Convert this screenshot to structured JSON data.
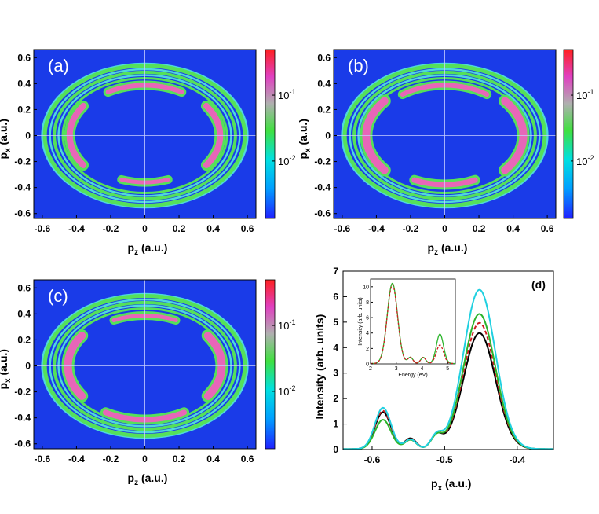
{
  "colors": {
    "map_background": "#1a3be8",
    "ring_green": "#55e05a",
    "ring_cyan": "#4fd8dc",
    "ring_magenta": "#e866b8",
    "crosshair": "#c8d0ff",
    "colorbar": [
      "#2020ff",
      "#00a0ff",
      "#00e0e0",
      "#40e040",
      "#b0b0b0",
      "#e040c0",
      "#ff2020"
    ]
  },
  "chart_data": [
    {
      "panel": "a",
      "type": "heatmap",
      "label": "(a)",
      "xlabel_main": "p",
      "xlabel_sub": "z",
      "xlabel_tail": " (a.u.)",
      "ylabel_main": "p",
      "ylabel_sub": "x",
      "ylabel_tail": " (a.u.)",
      "xlim": [
        -0.65,
        0.65
      ],
      "ylim": [
        -0.65,
        0.65
      ],
      "xticks": [
        "-0.6",
        "-0.4",
        "-0.2",
        "0",
        "0.2",
        "0.4",
        "0.6"
      ],
      "yticks": [
        "0.6",
        "0.4",
        "0.2",
        "0",
        "-0.2",
        "-0.4",
        "-0.6"
      ],
      "colorbar_ticks": [
        {
          "base": "10",
          "exp": "-1"
        },
        {
          "base": "10",
          "exp": "-2"
        }
      ],
      "scale": "log",
      "arcs": [
        {
          "r": 0.44,
          "from": -62,
          "to": -28,
          "level": 2
        },
        {
          "r": 0.44,
          "from": 28,
          "to": 62,
          "level": 2
        },
        {
          "r": 0.44,
          "from": 118,
          "to": 152,
          "level": 2
        },
        {
          "r": 0.44,
          "from": 208,
          "to": 242,
          "level": 2
        }
      ]
    },
    {
      "panel": "b",
      "type": "heatmap",
      "label": "(b)",
      "xlabel_main": "p",
      "xlabel_sub": "z",
      "xlabel_tail": " (a.u.)",
      "ylabel_main": "p",
      "ylabel_sub": "x",
      "ylabel_tail": " (a.u.)",
      "xlim": [
        -0.65,
        0.65
      ],
      "ylim": [
        -0.65,
        0.65
      ],
      "xticks": [
        "-0.6",
        "-0.4",
        "-0.2",
        "0",
        "0.2",
        "0.4",
        "0.6"
      ],
      "yticks": [
        "0.6",
        "0.4",
        "0.2",
        "0",
        "-0.2",
        "-0.4",
        "-0.6"
      ],
      "colorbar_ticks": [
        {
          "base": "10",
          "exp": "-1"
        },
        {
          "base": "10",
          "exp": "-2"
        }
      ],
      "scale": "log"
    },
    {
      "panel": "c",
      "type": "heatmap",
      "label": "(c)",
      "xlabel_main": "p",
      "xlabel_sub": "z",
      "xlabel_tail": " (a.u.)",
      "ylabel_main": "p",
      "ylabel_sub": "x",
      "ylabel_tail": " (a.u.)",
      "xlim": [
        -0.65,
        0.65
      ],
      "ylim": [
        -0.65,
        0.65
      ],
      "xticks": [
        "-0.6",
        "-0.4",
        "-0.2",
        "0",
        "0.2",
        "0.4",
        "0.6"
      ],
      "yticks": [
        "0.6",
        "0.4",
        "0.2",
        "0",
        "-0.2",
        "-0.4",
        "-0.6"
      ],
      "colorbar_ticks": [
        {
          "base": "10",
          "exp": "-1"
        },
        {
          "base": "10",
          "exp": "-2"
        }
      ],
      "scale": "log"
    },
    {
      "panel": "d",
      "type": "line",
      "label": "(d)",
      "xlabel_main": "p",
      "xlabel_sub": "x",
      "xlabel_tail": " (a.u.)",
      "ylabel": "Intensity (arb. units)",
      "xlim": [
        -0.64,
        -0.35
      ],
      "ylim": [
        0,
        7
      ],
      "xticks": [
        -0.6,
        -0.5,
        -0.4
      ],
      "xtick_labels": [
        "-0.6",
        "-0.5",
        "-0.4"
      ],
      "yticks": [
        0,
        1,
        2,
        3,
        4,
        5,
        6,
        7
      ],
      "ytick_labels": [
        "0",
        "1",
        "2",
        "3",
        "4",
        "5",
        "6",
        "7"
      ],
      "series": [
        {
          "name": "black",
          "color": "#000000",
          "dash": "",
          "peaks": [
            [
              -0.585,
              1.45,
              0.011
            ],
            [
              -0.547,
              0.42,
              0.008
            ],
            [
              -0.511,
              0.5,
              0.008
            ],
            [
              -0.452,
              4.55,
              0.022
            ]
          ]
        },
        {
          "name": "red-dashed",
          "color": "#cc2020",
          "dash": "5,3",
          "peaks": [
            [
              -0.585,
              1.5,
              0.011
            ],
            [
              -0.547,
              0.4,
              0.008
            ],
            [
              -0.511,
              0.5,
              0.008
            ],
            [
              -0.452,
              4.95,
              0.022
            ]
          ]
        },
        {
          "name": "green",
          "color": "#2bb52b",
          "dash": "",
          "peaks": [
            [
              -0.585,
              1.15,
              0.011
            ],
            [
              -0.547,
              0.36,
              0.008
            ],
            [
              -0.511,
              0.47,
              0.008
            ],
            [
              -0.452,
              5.3,
              0.022
            ]
          ]
        },
        {
          "name": "cyan",
          "color": "#20d0e0",
          "dash": "",
          "peaks": [
            [
              -0.585,
              1.62,
              0.011
            ],
            [
              -0.547,
              0.38,
              0.008
            ],
            [
              -0.511,
              0.5,
              0.008
            ],
            [
              -0.452,
              6.25,
              0.022
            ]
          ]
        }
      ],
      "inset": {
        "xlabel": "Energy (eV)",
        "ylabel": "Intensity (arb. units)",
        "xlim": [
          2,
          5.3
        ],
        "ylim": [
          0,
          11
        ],
        "xticks": [
          2,
          3,
          4,
          5
        ],
        "xtick_labels": [
          "2",
          "3",
          "4",
          "5"
        ],
        "yticks": [
          0,
          2,
          4,
          6,
          8,
          10
        ],
        "ytick_labels": [
          "0",
          "2",
          "4",
          "6",
          "8",
          "10"
        ],
        "series": [
          {
            "name": "green",
            "color": "#2bb52b",
            "dash": "",
            "peaks": [
              [
                2.85,
                10.4,
                0.2
              ],
              [
                3.55,
                0.8,
                0.1
              ],
              [
                4.05,
                0.8,
                0.1
              ],
              [
                4.7,
                3.8,
                0.14
              ]
            ]
          },
          {
            "name": "red-dashed",
            "color": "#cc2020",
            "dash": "3,2",
            "peaks": [
              [
                2.85,
                10.2,
                0.2
              ],
              [
                3.55,
                0.8,
                0.1
              ],
              [
                4.05,
                0.8,
                0.1
              ],
              [
                4.7,
                2.4,
                0.14
              ]
            ]
          }
        ]
      }
    }
  ]
}
